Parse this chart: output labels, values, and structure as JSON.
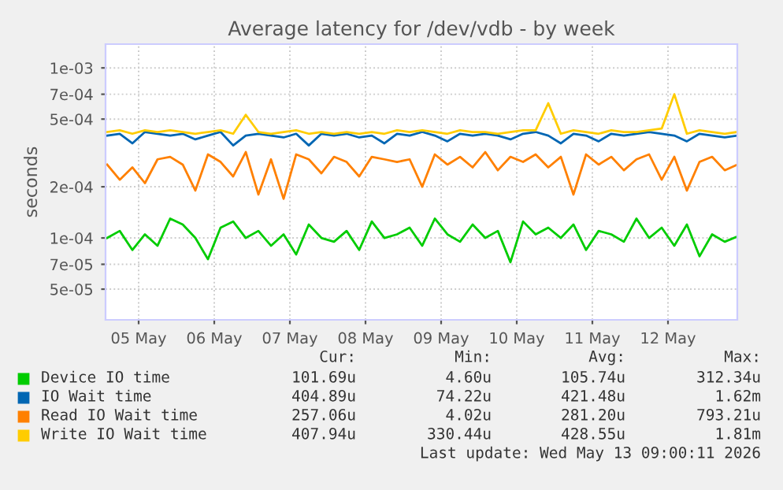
{
  "chart_data": {
    "type": "line",
    "title": "Average latency for /dev/vdb - by week",
    "ylabel": "seconds",
    "log": "y",
    "grid": true,
    "legend": "bottom",
    "marker": "none",
    "line_style": "solid",
    "ylim": [
      3.3e-05,
      0.00138
    ],
    "yticks": [
      {
        "value": 5e-05,
        "label": "5e-05"
      },
      {
        "value": 7e-05,
        "label": "7e-05"
      },
      {
        "value": 0.0001,
        "label": "1e-04"
      },
      {
        "value": 0.0002,
        "label": "2e-04"
      },
      {
        "value": 0.0005,
        "label": "5e-04"
      },
      {
        "value": 0.0007,
        "label": "7e-04"
      },
      {
        "value": 0.001,
        "label": "1e-03"
      }
    ],
    "xlim": [
      "2026-05-05T01:30",
      "2026-05-13T10:00"
    ],
    "xticks": [
      {
        "value": "2026-05-05T12:00",
        "label": "05 May"
      },
      {
        "value": "2026-05-06T12:00",
        "label": "06 May"
      },
      {
        "value": "2026-05-07T12:00",
        "label": "07 May"
      },
      {
        "value": "2026-05-08T12:00",
        "label": "08 May"
      },
      {
        "value": "2026-05-09T12:00",
        "label": "09 May"
      },
      {
        "value": "2026-05-10T12:00",
        "label": "10 May"
      },
      {
        "value": "2026-05-11T12:00",
        "label": "11 May"
      },
      {
        "value": "2026-05-12T12:00",
        "label": "12 May"
      }
    ],
    "x": [
      "2026-05-05T02:00",
      "2026-05-05T06:00",
      "2026-05-05T10:00",
      "2026-05-05T14:00",
      "2026-05-05T18:00",
      "2026-05-05T22:00",
      "2026-05-06T02:00",
      "2026-05-06T06:00",
      "2026-05-06T10:00",
      "2026-05-06T14:00",
      "2026-05-06T18:00",
      "2026-05-06T22:00",
      "2026-05-07T02:00",
      "2026-05-07T06:00",
      "2026-05-07T10:00",
      "2026-05-07T14:00",
      "2026-05-07T18:00",
      "2026-05-07T22:00",
      "2026-05-08T02:00",
      "2026-05-08T06:00",
      "2026-05-08T10:00",
      "2026-05-08T14:00",
      "2026-05-08T18:00",
      "2026-05-08T22:00",
      "2026-05-09T02:00",
      "2026-05-09T06:00",
      "2026-05-09T10:00",
      "2026-05-09T14:00",
      "2026-05-09T18:00",
      "2026-05-09T22:00",
      "2026-05-10T02:00",
      "2026-05-10T06:00",
      "2026-05-10T10:00",
      "2026-05-10T14:00",
      "2026-05-10T18:00",
      "2026-05-10T22:00",
      "2026-05-11T02:00",
      "2026-05-11T06:00",
      "2026-05-11T10:00",
      "2026-05-11T14:00",
      "2026-05-11T18:00",
      "2026-05-11T22:00",
      "2026-05-12T02:00",
      "2026-05-12T06:00",
      "2026-05-12T10:00",
      "2026-05-12T14:00",
      "2026-05-12T18:00",
      "2026-05-12T22:00",
      "2026-05-13T02:00",
      "2026-05-13T06:00",
      "2026-05-13T10:00"
    ],
    "series": [
      {
        "name": "Device IO time",
        "color": "#00cc00",
        "values": [
          0.0001,
          0.00011,
          8.5e-05,
          0.000105,
          9e-05,
          0.00013,
          0.00012,
          0.0001,
          7.5e-05,
          0.000115,
          0.000125,
          0.0001,
          0.00011,
          9e-05,
          0.000105,
          8e-05,
          0.00012,
          0.0001,
          9.5e-05,
          0.00011,
          8.5e-05,
          0.000125,
          0.0001,
          0.000105,
          0.000115,
          9e-05,
          0.00013,
          0.000105,
          9.5e-05,
          0.00012,
          0.0001,
          0.00011,
          7.2e-05,
          0.000125,
          0.000105,
          0.000115,
          0.0001,
          0.00012,
          8.5e-05,
          0.00011,
          0.000105,
          9.5e-05,
          0.00013,
          0.0001,
          0.000115,
          9e-05,
          0.00012,
          7.8e-05,
          0.000105,
          9.5e-05,
          0.000102
        ]
      },
      {
        "name": "IO Wait time",
        "color": "#0066b3",
        "values": [
          0.0004,
          0.00041,
          0.00036,
          0.00042,
          0.00041,
          0.0004,
          0.00041,
          0.00038,
          0.0004,
          0.00042,
          0.00035,
          0.0004,
          0.00041,
          0.0004,
          0.00039,
          0.00041,
          0.00035,
          0.00041,
          0.0004,
          0.00041,
          0.00039,
          0.0004,
          0.00036,
          0.00041,
          0.0004,
          0.00042,
          0.0004,
          0.00037,
          0.00041,
          0.0004,
          0.00041,
          0.0004,
          0.00038,
          0.00041,
          0.00042,
          0.0004,
          0.00036,
          0.00041,
          0.0004,
          0.00037,
          0.00041,
          0.0004,
          0.00041,
          0.00042,
          0.00041,
          0.0004,
          0.00037,
          0.00041,
          0.0004,
          0.00039,
          0.0004
        ]
      },
      {
        "name": "Read IO Wait time",
        "color": "#ff8000",
        "values": [
          0.00027,
          0.00022,
          0.00026,
          0.00021,
          0.00029,
          0.0003,
          0.00027,
          0.00019,
          0.00031,
          0.00028,
          0.00023,
          0.00032,
          0.00018,
          0.00029,
          0.00017,
          0.00031,
          0.00029,
          0.00024,
          0.0003,
          0.00028,
          0.00023,
          0.0003,
          0.00029,
          0.00028,
          0.00029,
          0.0002,
          0.00031,
          0.00027,
          0.0003,
          0.00026,
          0.00032,
          0.00025,
          0.0003,
          0.00028,
          0.00031,
          0.00026,
          0.0003,
          0.00018,
          0.00031,
          0.00027,
          0.0003,
          0.00025,
          0.00029,
          0.00031,
          0.00022,
          0.0003,
          0.00019,
          0.00028,
          0.0003,
          0.00025,
          0.00027
        ]
      },
      {
        "name": "Write IO Wait time",
        "color": "#ffcc00",
        "values": [
          0.00042,
          0.00043,
          0.00041,
          0.00043,
          0.00042,
          0.00043,
          0.00042,
          0.00041,
          0.00042,
          0.00043,
          0.00041,
          0.00053,
          0.00042,
          0.00041,
          0.00042,
          0.00043,
          0.00041,
          0.00042,
          0.00041,
          0.00042,
          0.00041,
          0.00042,
          0.00041,
          0.00043,
          0.00042,
          0.00043,
          0.00042,
          0.00041,
          0.00043,
          0.00042,
          0.00042,
          0.00041,
          0.00042,
          0.00043,
          0.00043,
          0.00062,
          0.00041,
          0.00043,
          0.00042,
          0.00041,
          0.00043,
          0.00042,
          0.00042,
          0.00043,
          0.00044,
          0.0007,
          0.00041,
          0.00043,
          0.00042,
          0.00041,
          0.00042
        ]
      }
    ],
    "annotations": [
      "Cur:",
      "Min:",
      "Avg:",
      "Max:",
      "101.69u",
      "4.60u",
      "105.74u",
      "312.34u",
      "404.89u",
      "74.22u",
      "421.48u",
      "1.62m",
      "257.06u",
      "4.02u",
      "281.20u",
      "793.21u",
      "407.94u",
      "330.44u",
      "428.55u",
      "1.81m",
      "Last update: Wed May 13 09:00:11 2026"
    ]
  }
}
